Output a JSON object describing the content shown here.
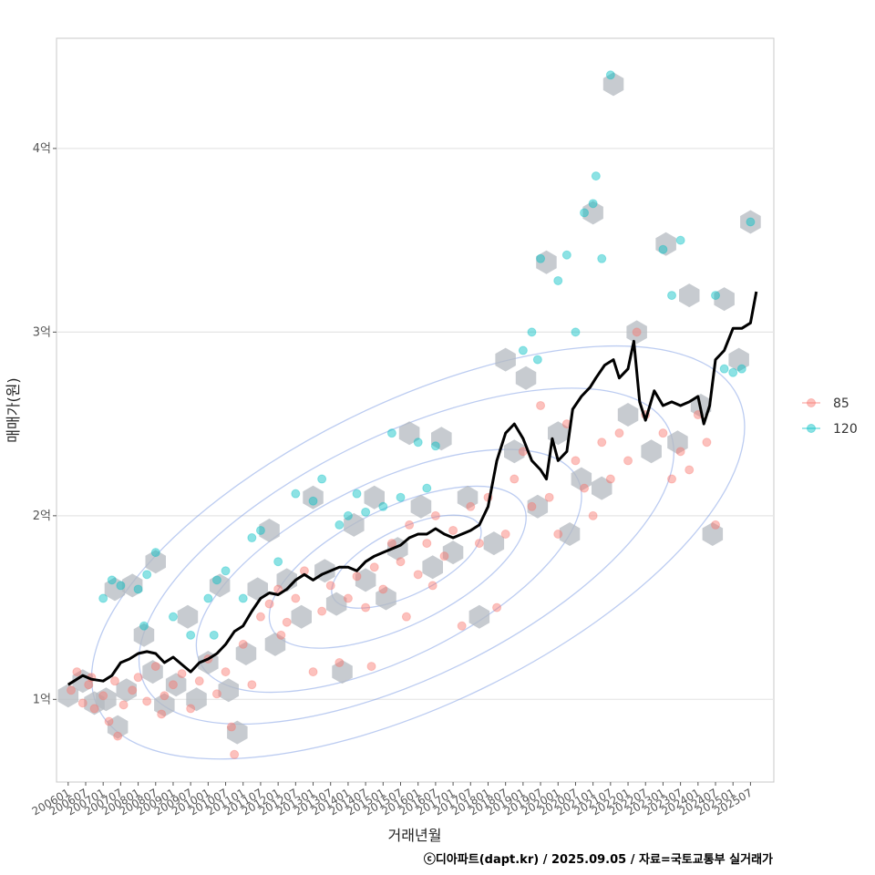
{
  "chart_data": {
    "type": "scatter",
    "title": "",
    "xlabel": "거래년월",
    "ylabel": "매매가(원)",
    "caption": "ⓒ디아파트(dapt.kr) / 2025.09.05 / 자료=국토교통부 실거래가",
    "y_unit": "억",
    "ylim": [
      0.55,
      4.6
    ],
    "xlim": [
      "2005-09",
      "2026-03"
    ],
    "y_ticks": [
      {
        "value": 1,
        "label": "1억"
      },
      {
        "value": 2,
        "label": "2억"
      },
      {
        "value": 3,
        "label": "3억"
      },
      {
        "value": 4,
        "label": "4억"
      }
    ],
    "x_ticks": [
      "200601",
      "200607",
      "200701",
      "200707",
      "200801",
      "200807",
      "200901",
      "200907",
      "201001",
      "201007",
      "201101",
      "201107",
      "201201",
      "201207",
      "201301",
      "201307",
      "201401",
      "201407",
      "201501",
      "201507",
      "201601",
      "201607",
      "201701",
      "201707",
      "201801",
      "201807",
      "201901",
      "201907",
      "202001",
      "202007",
      "202101",
      "202107",
      "202201",
      "202207",
      "202301",
      "202307",
      "202401",
      "202407",
      "202501",
      "202507"
    ],
    "grid": true,
    "legend_position": "right",
    "colors": {
      "s85": "#F8766D",
      "s120": "#00BFC4",
      "trend": "#000000",
      "hex": "#B4BAC0",
      "contour": "#6B8FE0"
    },
    "series": [
      {
        "name": "85",
        "color": "#F8766D",
        "points": [
          [
            "2006-02",
            1.05
          ],
          [
            "2006-04",
            1.15
          ],
          [
            "2006-06",
            0.98
          ],
          [
            "2006-08",
            1.08
          ],
          [
            "2006-10",
            0.95
          ],
          [
            "2007-01",
            1.02
          ],
          [
            "2007-03",
            0.88
          ],
          [
            "2007-05",
            1.1
          ],
          [
            "2007-08",
            0.97
          ],
          [
            "2007-11",
            1.05
          ],
          [
            "2008-01",
            1.12
          ],
          [
            "2008-04",
            0.99
          ],
          [
            "2008-07",
            1.18
          ],
          [
            "2008-10",
            1.02
          ],
          [
            "2009-01",
            1.08
          ],
          [
            "2009-04",
            1.14
          ],
          [
            "2009-07",
            0.95
          ],
          [
            "2009-10",
            1.1
          ],
          [
            "2010-01",
            1.22
          ],
          [
            "2010-04",
            1.03
          ],
          [
            "2010-07",
            1.15
          ],
          [
            "2010-10",
            0.7
          ],
          [
            "2011-01",
            1.3
          ],
          [
            "2011-04",
            1.08
          ],
          [
            "2011-07",
            1.45
          ],
          [
            "2011-10",
            1.52
          ],
          [
            "2012-01",
            1.6
          ],
          [
            "2012-04",
            1.42
          ],
          [
            "2012-07",
            1.55
          ],
          [
            "2012-10",
            1.7
          ],
          [
            "2013-01",
            1.15
          ],
          [
            "2013-04",
            1.48
          ],
          [
            "2013-07",
            1.62
          ],
          [
            "2013-10",
            1.2
          ],
          [
            "2014-01",
            1.55
          ],
          [
            "2014-04",
            1.67
          ],
          [
            "2014-07",
            1.5
          ],
          [
            "2014-10",
            1.72
          ],
          [
            "2015-01",
            1.6
          ],
          [
            "2015-04",
            1.85
          ],
          [
            "2015-07",
            1.75
          ],
          [
            "2015-10",
            1.95
          ],
          [
            "2016-01",
            1.68
          ],
          [
            "2016-04",
            1.85
          ],
          [
            "2016-07",
            2.0
          ],
          [
            "2016-10",
            1.78
          ],
          [
            "2017-01",
            1.92
          ],
          [
            "2017-04",
            1.4
          ],
          [
            "2017-07",
            2.05
          ],
          [
            "2017-10",
            1.85
          ],
          [
            "2018-01",
            2.1
          ],
          [
            "2018-04",
            1.5
          ],
          [
            "2018-07",
            1.9
          ],
          [
            "2018-10",
            2.2
          ],
          [
            "2019-01",
            2.35
          ],
          [
            "2019-04",
            2.05
          ],
          [
            "2019-07",
            2.6
          ],
          [
            "2019-10",
            2.1
          ],
          [
            "2020-01",
            1.9
          ],
          [
            "2020-04",
            2.5
          ],
          [
            "2020-07",
            2.3
          ],
          [
            "2020-10",
            2.15
          ],
          [
            "2021-01",
            2.0
          ],
          [
            "2021-04",
            2.4
          ],
          [
            "2021-07",
            2.2
          ],
          [
            "2021-10",
            2.45
          ],
          [
            "2022-01",
            2.3
          ],
          [
            "2022-04",
            3.0
          ],
          [
            "2022-07",
            2.55
          ],
          [
            "2023-01",
            2.45
          ],
          [
            "2023-04",
            2.2
          ],
          [
            "2023-07",
            2.35
          ],
          [
            "2023-10",
            2.25
          ],
          [
            "2024-01",
            2.55
          ],
          [
            "2024-04",
            2.4
          ],
          [
            "2024-07",
            1.95
          ],
          [
            "2006-09",
            1.12
          ],
          [
            "2007-06",
            0.8
          ],
          [
            "2008-09",
            0.92
          ],
          [
            "2012-02",
            1.35
          ],
          [
            "2015-09",
            1.45
          ],
          [
            "2016-06",
            1.62
          ],
          [
            "2014-09",
            1.18
          ],
          [
            "2010-09",
            0.85
          ]
        ]
      },
      {
        "name": "120",
        "color": "#00BFC4",
        "points": [
          [
            "2007-01",
            1.55
          ],
          [
            "2007-04",
            1.65
          ],
          [
            "2007-07",
            1.62
          ],
          [
            "2008-01",
            1.6
          ],
          [
            "2008-04",
            1.68
          ],
          [
            "2008-07",
            1.8
          ],
          [
            "2008-03",
            1.4
          ],
          [
            "2009-01",
            1.45
          ],
          [
            "2009-07",
            1.35
          ],
          [
            "2010-01",
            1.55
          ],
          [
            "2010-04",
            1.65
          ],
          [
            "2010-07",
            1.7
          ],
          [
            "2011-01",
            1.55
          ],
          [
            "2011-04",
            1.88
          ],
          [
            "2011-07",
            1.92
          ],
          [
            "2012-01",
            1.75
          ],
          [
            "2012-07",
            2.12
          ],
          [
            "2013-01",
            2.08
          ],
          [
            "2013-04",
            2.2
          ],
          [
            "2013-10",
            1.95
          ],
          [
            "2014-01",
            2.0
          ],
          [
            "2014-04",
            2.12
          ],
          [
            "2014-07",
            2.02
          ],
          [
            "2015-01",
            2.05
          ],
          [
            "2015-04",
            2.45
          ],
          [
            "2015-07",
            2.1
          ],
          [
            "2016-01",
            2.4
          ],
          [
            "2016-04",
            2.15
          ],
          [
            "2016-07",
            2.38
          ],
          [
            "2019-01",
            2.9
          ],
          [
            "2019-04",
            3.0
          ],
          [
            "2019-06",
            2.85
          ],
          [
            "2019-07",
            3.4
          ],
          [
            "2020-01",
            3.28
          ],
          [
            "2020-04",
            3.42
          ],
          [
            "2020-07",
            3.0
          ],
          [
            "2020-10",
            3.65
          ],
          [
            "2021-01",
            3.7
          ],
          [
            "2021-02",
            3.85
          ],
          [
            "2021-04",
            3.4
          ],
          [
            "2021-07",
            4.4
          ],
          [
            "2023-01",
            3.45
          ],
          [
            "2023-04",
            3.2
          ],
          [
            "2023-07",
            3.5
          ],
          [
            "2024-07",
            3.2
          ],
          [
            "2024-10",
            2.8
          ],
          [
            "2025-01",
            2.78
          ],
          [
            "2025-07",
            3.6
          ],
          [
            "2025-04",
            2.8
          ],
          [
            "2010-03",
            1.35
          ]
        ]
      }
    ],
    "trend": {
      "name": "",
      "color": "#000000",
      "points": [
        [
          "2006-01",
          1.08
        ],
        [
          "2006-03",
          1.1
        ],
        [
          "2006-06",
          1.13
        ],
        [
          "2006-09",
          1.11
        ],
        [
          "2007-01",
          1.1
        ],
        [
          "2007-04",
          1.13
        ],
        [
          "2007-07",
          1.2
        ],
        [
          "2007-10",
          1.22
        ],
        [
          "2008-01",
          1.25
        ],
        [
          "2008-04",
          1.26
        ],
        [
          "2008-07",
          1.25
        ],
        [
          "2008-10",
          1.2
        ],
        [
          "2009-01",
          1.23
        ],
        [
          "2009-04",
          1.19
        ],
        [
          "2009-07",
          1.15
        ],
        [
          "2009-10",
          1.2
        ],
        [
          "2010-01",
          1.22
        ],
        [
          "2010-04",
          1.25
        ],
        [
          "2010-07",
          1.3
        ],
        [
          "2010-10",
          1.37
        ],
        [
          "2011-01",
          1.4
        ],
        [
          "2011-04",
          1.48
        ],
        [
          "2011-07",
          1.55
        ],
        [
          "2011-10",
          1.58
        ],
        [
          "2012-01",
          1.57
        ],
        [
          "2012-04",
          1.6
        ],
        [
          "2012-07",
          1.65
        ],
        [
          "2012-10",
          1.68
        ],
        [
          "2013-01",
          1.65
        ],
        [
          "2013-04",
          1.68
        ],
        [
          "2013-07",
          1.7
        ],
        [
          "2013-10",
          1.72
        ],
        [
          "2014-01",
          1.72
        ],
        [
          "2014-04",
          1.7
        ],
        [
          "2014-07",
          1.75
        ],
        [
          "2014-10",
          1.78
        ],
        [
          "2015-01",
          1.8
        ],
        [
          "2015-04",
          1.82
        ],
        [
          "2015-07",
          1.84
        ],
        [
          "2015-10",
          1.88
        ],
        [
          "2016-01",
          1.9
        ],
        [
          "2016-04",
          1.9
        ],
        [
          "2016-07",
          1.93
        ],
        [
          "2016-10",
          1.9
        ],
        [
          "2017-01",
          1.88
        ],
        [
          "2017-04",
          1.9
        ],
        [
          "2017-07",
          1.92
        ],
        [
          "2017-10",
          1.95
        ],
        [
          "2018-01",
          2.05
        ],
        [
          "2018-04",
          2.3
        ],
        [
          "2018-07",
          2.45
        ],
        [
          "2018-10",
          2.5
        ],
        [
          "2019-01",
          2.42
        ],
        [
          "2019-04",
          2.3
        ],
        [
          "2019-07",
          2.25
        ],
        [
          "2019-09",
          2.2
        ],
        [
          "2019-11",
          2.42
        ],
        [
          "2020-01",
          2.3
        ],
        [
          "2020-04",
          2.35
        ],
        [
          "2020-06",
          2.58
        ],
        [
          "2020-09",
          2.65
        ],
        [
          "2020-12",
          2.7
        ],
        [
          "2021-02",
          2.75
        ],
        [
          "2021-05",
          2.82
        ],
        [
          "2021-08",
          2.85
        ],
        [
          "2021-10",
          2.75
        ],
        [
          "2022-01",
          2.8
        ],
        [
          "2022-03",
          2.95
        ],
        [
          "2022-05",
          2.62
        ],
        [
          "2022-07",
          2.52
        ],
        [
          "2022-10",
          2.68
        ],
        [
          "2023-01",
          2.6
        ],
        [
          "2023-04",
          2.62
        ],
        [
          "2023-07",
          2.6
        ],
        [
          "2023-10",
          2.62
        ],
        [
          "2024-01",
          2.65
        ],
        [
          "2024-03",
          2.5
        ],
        [
          "2024-05",
          2.6
        ],
        [
          "2024-07",
          2.85
        ],
        [
          "2024-10",
          2.9
        ],
        [
          "2025-01",
          3.02
        ],
        [
          "2025-04",
          3.02
        ],
        [
          "2025-07",
          3.05
        ],
        [
          "2025-09",
          3.22
        ]
      ]
    },
    "hex_bins": [
      [
        "2006-01",
        1.02
      ],
      [
        "2006-06",
        1.1
      ],
      [
        "2006-10",
        0.98
      ],
      [
        "2007-02",
        1.0
      ],
      [
        "2007-06",
        0.85
      ],
      [
        "2007-09",
        1.05
      ],
      [
        "2007-05",
        1.6
      ],
      [
        "2007-11",
        1.62
      ],
      [
        "2008-03",
        1.35
      ],
      [
        "2008-07",
        1.75
      ],
      [
        "2008-06",
        1.15
      ],
      [
        "2008-10",
        0.97
      ],
      [
        "2009-02",
        1.08
      ],
      [
        "2009-06",
        1.45
      ],
      [
        "2009-09",
        1.0
      ],
      [
        "2010-01",
        1.2
      ],
      [
        "2010-05",
        1.62
      ],
      [
        "2010-08",
        1.05
      ],
      [
        "2010-11",
        0.82
      ],
      [
        "2011-02",
        1.25
      ],
      [
        "2011-06",
        1.6
      ],
      [
        "2011-10",
        1.92
      ],
      [
        "2011-12",
        1.3
      ],
      [
        "2012-04",
        1.65
      ],
      [
        "2012-09",
        1.45
      ],
      [
        "2013-01",
        2.1
      ],
      [
        "2013-05",
        1.7
      ],
      [
        "2013-09",
        1.52
      ],
      [
        "2013-11",
        1.15
      ],
      [
        "2014-03",
        1.95
      ],
      [
        "2014-07",
        1.65
      ],
      [
        "2014-10",
        2.1
      ],
      [
        "2015-02",
        1.55
      ],
      [
        "2015-06",
        1.82
      ],
      [
        "2015-10",
        2.45
      ],
      [
        "2016-02",
        2.05
      ],
      [
        "2016-06",
        1.72
      ],
      [
        "2016-09",
        2.42
      ],
      [
        "2017-01",
        1.8
      ],
      [
        "2017-06",
        2.1
      ],
      [
        "2017-10",
        1.45
      ],
      [
        "2018-03",
        1.85
      ],
      [
        "2018-07",
        2.85
      ],
      [
        "2018-10",
        2.35
      ],
      [
        "2019-02",
        2.75
      ],
      [
        "2019-06",
        2.05
      ],
      [
        "2019-09",
        3.38
      ],
      [
        "2020-01",
        2.45
      ],
      [
        "2020-05",
        1.9
      ],
      [
        "2020-09",
        2.2
      ],
      [
        "2021-01",
        3.65
      ],
      [
        "2021-04",
        2.15
      ],
      [
        "2021-08",
        4.35
      ],
      [
        "2022-01",
        2.55
      ],
      [
        "2022-04",
        3.0
      ],
      [
        "2022-09",
        2.35
      ],
      [
        "2023-02",
        3.48
      ],
      [
        "2023-06",
        2.4
      ],
      [
        "2023-10",
        3.2
      ],
      [
        "2024-02",
        2.6
      ],
      [
        "2024-06",
        1.9
      ],
      [
        "2024-10",
        3.18
      ],
      [
        "2025-03",
        2.85
      ],
      [
        "2025-07",
        3.6
      ]
    ],
    "density_contours": [
      {
        "level": 1,
        "center": [
          "2015-09",
          1.75
        ],
        "rx_months": 28,
        "ry": 0.18
      },
      {
        "level": 2,
        "center": [
          "2015-06",
          1.72
        ],
        "rx_months": 48,
        "ry": 0.32
      },
      {
        "level": 3,
        "center": [
          "2015-03",
          1.7
        ],
        "rx_months": 72,
        "ry": 0.48
      },
      {
        "level": 4,
        "center": [
          "2015-09",
          1.78
        ],
        "rx_months": 100,
        "ry": 0.66
      },
      {
        "level": 5,
        "center": [
          "2016-01",
          1.8
        ],
        "rx_months": 122,
        "ry": 0.82
      }
    ],
    "legend": [
      {
        "label": "85",
        "color": "#F8766D"
      },
      {
        "label": "120",
        "color": "#00BFC4"
      }
    ]
  }
}
